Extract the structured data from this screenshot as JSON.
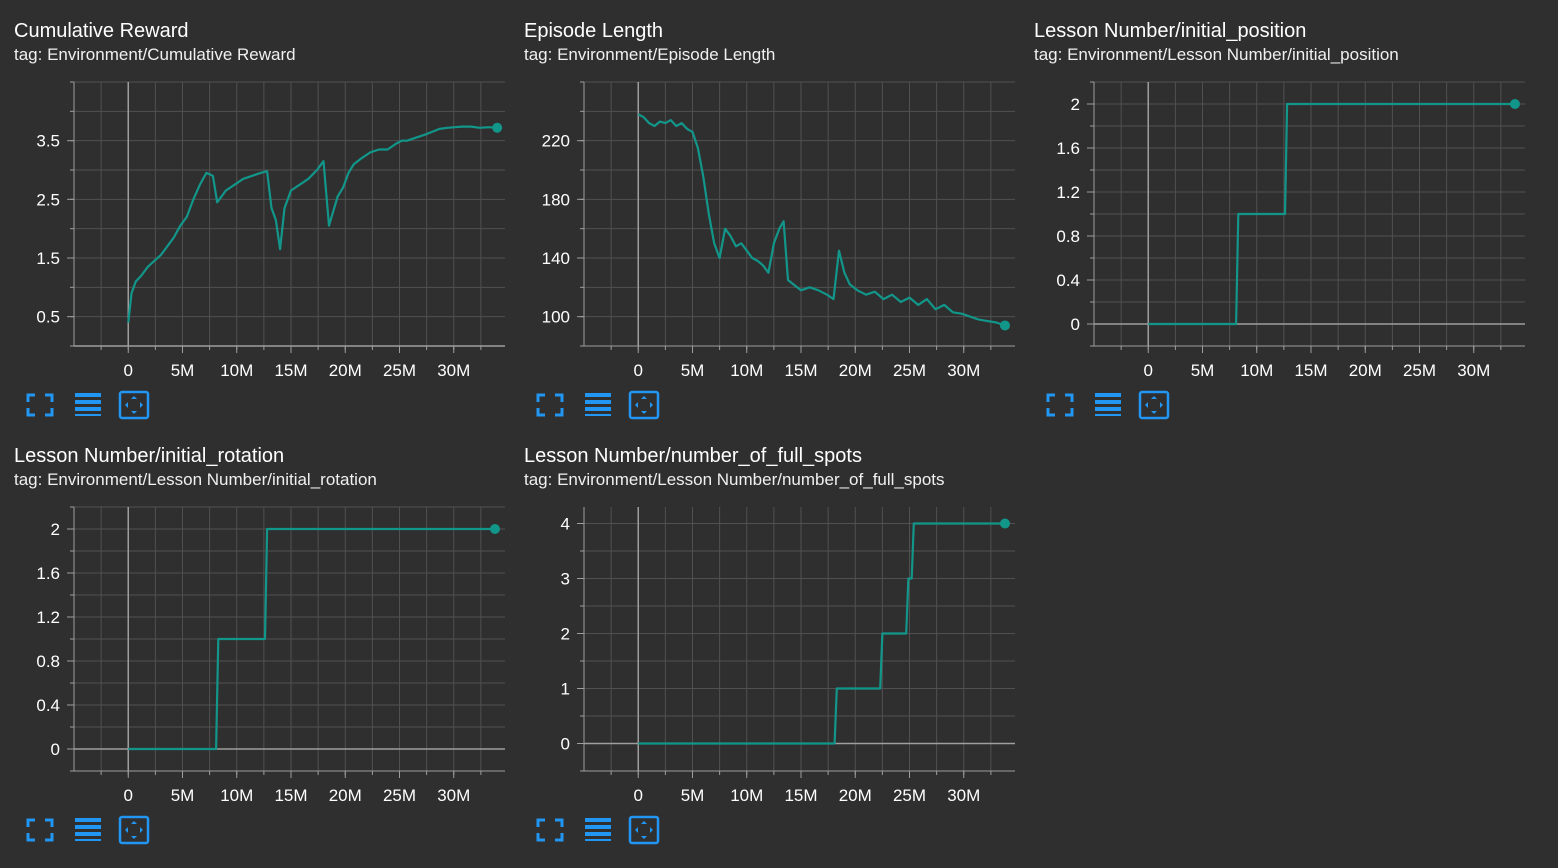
{
  "colors": {
    "background": "#2f2f2f",
    "line": "#12968a",
    "axis": "#9e9e9e",
    "grid": "#505050",
    "icon": "#2196f3"
  },
  "toolbar": {
    "icons": [
      "fullscreen-icon",
      "toggle-log-scale-icon",
      "fit-domain-icon"
    ]
  },
  "chart_data": [
    {
      "type": "line",
      "title": "Cumulative Reward",
      "tag": "tag: Environment/Cumulative Reward",
      "xticks": [
        "0",
        "5M",
        "10M",
        "15M",
        "20M",
        "25M",
        "30M"
      ],
      "yticks": [
        "0.5",
        "1.5",
        "2.5",
        "3.5"
      ],
      "xlim": [
        -5000000,
        35000000
      ],
      "ylim": [
        0,
        4.5
      ],
      "series": [
        {
          "x": [
            0,
            0.3,
            0.7,
            1.2,
            1.8,
            2.4,
            3.0,
            3.6,
            4.2,
            4.8,
            5.4,
            6.0,
            6.6,
            7.2,
            7.8,
            8.2,
            8.6,
            9.0,
            9.8,
            10.6,
            11.4,
            12.2,
            12.8,
            13.2,
            13.6,
            14.0,
            14.4,
            15.0,
            15.8,
            16.6,
            17.4,
            18.0,
            18.5,
            18.9,
            19.3,
            19.8,
            20.3,
            20.8,
            21.5,
            22.3,
            23.1,
            23.9,
            24.7,
            25.2,
            25.7,
            26.5,
            27.3,
            28.0,
            28.7,
            29.4,
            30.1,
            30.8,
            31.6,
            32.4,
            33.2,
            34.0
          ],
          "y": [
            0.4,
            0.9,
            1.1,
            1.2,
            1.35,
            1.45,
            1.55,
            1.7,
            1.85,
            2.05,
            2.2,
            2.5,
            2.75,
            2.95,
            2.9,
            2.45,
            2.55,
            2.65,
            2.75,
            2.85,
            2.9,
            2.95,
            2.98,
            2.35,
            2.15,
            1.65,
            2.35,
            2.65,
            2.75,
            2.85,
            3.0,
            3.15,
            2.05,
            2.3,
            2.55,
            2.7,
            2.95,
            3.1,
            3.2,
            3.3,
            3.35,
            3.35,
            3.45,
            3.5,
            3.5,
            3.55,
            3.6,
            3.65,
            3.7,
            3.72,
            3.73,
            3.74,
            3.74,
            3.72,
            3.73,
            3.72
          ]
        }
      ]
    },
    {
      "type": "line",
      "title": "Episode Length",
      "tag": "tag: Environment/Episode Length",
      "xticks": [
        "0",
        "5M",
        "10M",
        "15M",
        "20M",
        "25M",
        "30M"
      ],
      "yticks": [
        "100",
        "140",
        "180",
        "220"
      ],
      "xlim": [
        -5000000,
        35000000
      ],
      "ylim": [
        80,
        260
      ],
      "series": [
        {
          "x": [
            0,
            0.5,
            1.0,
            1.5,
            2.0,
            2.5,
            3.0,
            3.5,
            4.0,
            4.5,
            5.0,
            5.5,
            6.0,
            6.5,
            7.0,
            7.5,
            8.0,
            8.5,
            9.0,
            9.5,
            10.0,
            10.5,
            11.0,
            11.5,
            12.0,
            12.5,
            13.0,
            13.4,
            13.8,
            14.3,
            15.0,
            15.8,
            16.6,
            17.4,
            18.0,
            18.5,
            19.0,
            19.5,
            20.2,
            21.0,
            21.8,
            22.6,
            23.4,
            24.2,
            25.0,
            25.8,
            26.6,
            27.4,
            28.2,
            29.0,
            29.8,
            30.6,
            31.4,
            32.2,
            33.0,
            33.8
          ],
          "y": [
            238,
            236,
            232,
            230,
            233,
            232,
            234,
            230,
            232,
            228,
            226,
            215,
            195,
            170,
            150,
            140,
            160,
            155,
            148,
            150,
            145,
            140,
            138,
            135,
            130,
            150,
            160,
            165,
            125,
            122,
            118,
            120,
            118,
            115,
            112,
            145,
            130,
            122,
            118,
            115,
            117,
            112,
            115,
            110,
            113,
            108,
            112,
            105,
            108,
            103,
            102,
            100,
            98,
            97,
            96,
            94
          ]
        }
      ]
    },
    {
      "type": "line",
      "title": "Lesson Number/initial_position",
      "tag": "tag: Environment/Lesson Number/initial_position",
      "xticks": [
        "0",
        "5M",
        "10M",
        "15M",
        "20M",
        "25M",
        "30M"
      ],
      "yticks": [
        "0",
        "0.4",
        "0.8",
        "1.2",
        "1.6",
        "2"
      ],
      "xlim": [
        -5000000,
        35000000
      ],
      "ylim": [
        -0.2,
        2.2
      ],
      "series": [
        {
          "x": [
            0,
            8.1,
            8.3,
            12.6,
            12.8,
            33.8
          ],
          "y": [
            0,
            0,
            1,
            1,
            2,
            2
          ]
        }
      ]
    },
    {
      "type": "line",
      "title": "Lesson Number/initial_rotation",
      "tag": "tag: Environment/Lesson Number/initial_rotation",
      "xticks": [
        "0",
        "5M",
        "10M",
        "15M",
        "20M",
        "25M",
        "30M"
      ],
      "yticks": [
        "0",
        "0.4",
        "0.8",
        "1.2",
        "1.6",
        "2"
      ],
      "xlim": [
        -5000000,
        35000000
      ],
      "ylim": [
        -0.2,
        2.2
      ],
      "series": [
        {
          "x": [
            0,
            8.1,
            8.3,
            12.6,
            12.8,
            33.8
          ],
          "y": [
            0,
            0,
            1,
            1,
            2,
            2
          ]
        }
      ]
    },
    {
      "type": "line",
      "title": "Lesson Number/number_of_full_spots",
      "tag": "tag: Environment/Lesson Number/number_of_full_spots",
      "xticks": [
        "0",
        "5M",
        "10M",
        "15M",
        "20M",
        "25M",
        "30M"
      ],
      "yticks": [
        "0",
        "1",
        "2",
        "3",
        "4"
      ],
      "xlim": [
        -5000000,
        35000000
      ],
      "ylim": [
        -0.5,
        4.3
      ],
      "series": [
        {
          "x": [
            0,
            18.1,
            18.3,
            22.3,
            22.5,
            24.7,
            24.9,
            25.2,
            25.4,
            33.8
          ],
          "y": [
            0,
            0,
            1,
            1,
            2,
            2,
            3,
            3,
            4,
            4
          ]
        }
      ]
    }
  ]
}
